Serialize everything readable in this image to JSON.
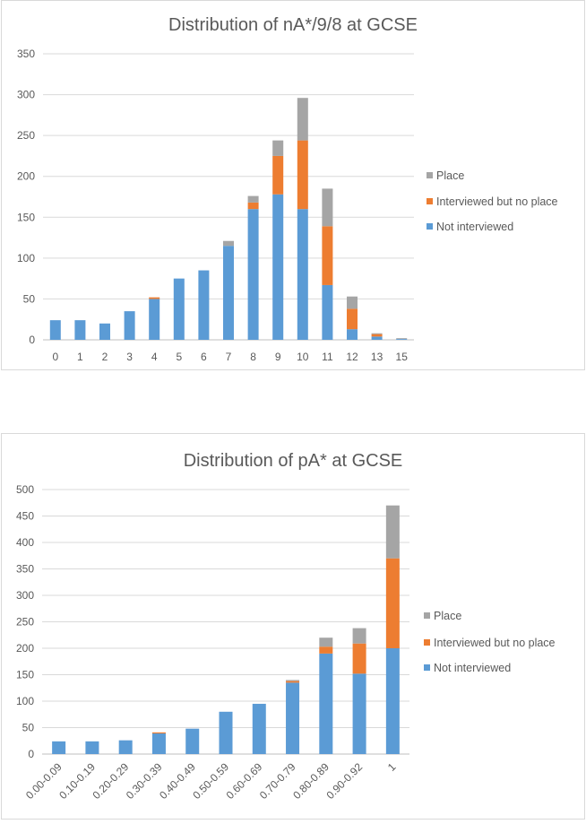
{
  "chart_data": [
    {
      "type": "bar",
      "stacked": true,
      "title": "Distribution of nA*/9/8 at GCSE",
      "categories": [
        "0",
        "1",
        "2",
        "3",
        "4",
        "5",
        "6",
        "7",
        "8",
        "9",
        "10",
        "11",
        "12",
        "13",
        "15"
      ],
      "series": [
        {
          "name": "Not interviewed",
          "color": "#5b9bd5",
          "values": [
            24,
            24,
            20,
            35,
            50,
            75,
            85,
            115,
            160,
            178,
            160,
            67,
            13,
            4,
            1
          ]
        },
        {
          "name": "Interviewed but no place",
          "color": "#ed7d31",
          "values": [
            0,
            0,
            0,
            0,
            2,
            0,
            0,
            0,
            8,
            47,
            84,
            72,
            25,
            3,
            0
          ]
        },
        {
          "name": "Place",
          "color": "#a5a5a5",
          "values": [
            0,
            0,
            0,
            0,
            0,
            0,
            0,
            6,
            8,
            19,
            52,
            46,
            15,
            1,
            1
          ]
        }
      ],
      "ylim": [
        0,
        350
      ],
      "yticks": [
        0,
        50,
        100,
        150,
        200,
        250,
        300,
        350
      ],
      "grid": true,
      "legend_position": "right"
    },
    {
      "type": "bar",
      "stacked": true,
      "title": "Distribution of pA* at GCSE",
      "categories": [
        "0.00-0.09",
        "0.10-0.19",
        "0.20-0.29",
        "0.30-0.39",
        "0.40-0.49",
        "0.50-0.59",
        "0.60-0.69",
        "0.70-0.79",
        "0.80-0.89",
        "0.90-0.92",
        "1"
      ],
      "series": [
        {
          "name": "Not interviewed",
          "color": "#5b9bd5",
          "values": [
            24,
            24,
            26,
            39,
            48,
            80,
            95,
            135,
            190,
            152,
            200
          ]
        },
        {
          "name": "Interviewed but no place",
          "color": "#ed7d31",
          "values": [
            0,
            0,
            0,
            2,
            0,
            0,
            0,
            3,
            13,
            57,
            170
          ]
        },
        {
          "name": "Place",
          "color": "#a5a5a5",
          "values": [
            0,
            0,
            0,
            0,
            0,
            0,
            0,
            2,
            17,
            29,
            100
          ]
        }
      ],
      "ylim": [
        0,
        500
      ],
      "yticks": [
        0,
        50,
        100,
        150,
        200,
        250,
        300,
        350,
        400,
        450,
        500
      ],
      "grid": true,
      "legend_position": "right"
    }
  ]
}
